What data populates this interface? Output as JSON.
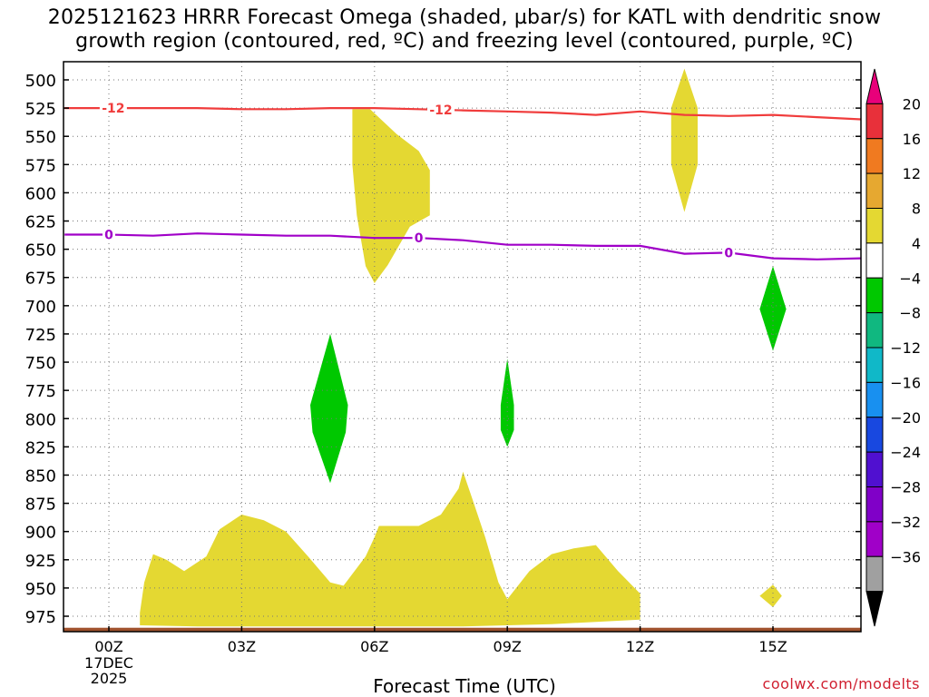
{
  "title": {
    "line1": "2025121623 HRRR Forecast Omega (shaded, µbar/s) for KATL with dendritic snow",
    "line2": "growth region (contoured, red, ºC) and freezing level (contoured, purple, ºC)"
  },
  "xlabel": "Forecast Time (UTC)",
  "credit": "coolwx.com/modelts",
  "chart_data": {
    "type": "time-height cross-section",
    "x_unit": "forecast hour",
    "x_ticks": [
      {
        "hour": 0,
        "label": "00Z",
        "sub": [
          "17DEC",
          "2025"
        ]
      },
      {
        "hour": 3,
        "label": "03Z",
        "sub": []
      },
      {
        "hour": 6,
        "label": "06Z",
        "sub": []
      },
      {
        "hour": 9,
        "label": "09Z",
        "sub": []
      },
      {
        "hour": 12,
        "label": "12Z",
        "sub": []
      },
      {
        "hour": 15,
        "label": "15Z",
        "sub": []
      }
    ],
    "xlim": [
      -1,
      17
    ],
    "y_unit": "hPa",
    "y_levels": [
      500,
      525,
      550,
      575,
      600,
      625,
      650,
      675,
      700,
      725,
      750,
      775,
      800,
      825,
      850,
      875,
      900,
      925,
      950,
      975
    ],
    "ylim": [
      490,
      985
    ],
    "colorbar": {
      "ticks": [
        20,
        16,
        12,
        8,
        4,
        -4,
        -8,
        -12,
        -16,
        -20,
        -24,
        -28,
        -32,
        -36
      ],
      "colors": [
        "#e8007a",
        "#e8303a",
        "#f07a20",
        "#e6a830",
        "#e4d832",
        "#ffffff",
        "#00c800",
        "#10b880",
        "#10b8c8",
        "#1890f0",
        "#1848e0",
        "#5010d0",
        "#8000c8",
        "#a000c8",
        "#a0a0a0",
        "#000000"
      ]
    },
    "omega_fill": [
      {
        "sign": "positive",
        "color": "#e4d832",
        "points": [
          [
            5.5,
            526
          ],
          [
            5.9,
            526
          ],
          [
            6.5,
            548
          ],
          [
            7.0,
            563
          ],
          [
            7.25,
            580
          ],
          [
            7.25,
            620
          ],
          [
            6.8,
            630
          ],
          [
            6.3,
            664
          ],
          [
            6.0,
            680
          ],
          [
            5.8,
            665
          ],
          [
            5.6,
            620
          ],
          [
            5.5,
            575
          ]
        ]
      },
      {
        "sign": "positive",
        "color": "#e4d832",
        "points": [
          [
            13.0,
            490
          ],
          [
            13.3,
            525
          ],
          [
            13.3,
            575
          ],
          [
            13.0,
            617
          ],
          [
            12.7,
            575
          ],
          [
            12.7,
            525
          ]
        ]
      },
      {
        "sign": "positive",
        "color": "#e4d832",
        "points": [
          [
            0.7,
            972
          ],
          [
            0.8,
            945
          ],
          [
            1.0,
            920
          ],
          [
            1.3,
            925
          ],
          [
            1.7,
            935
          ],
          [
            2.2,
            922
          ],
          [
            2.5,
            898
          ],
          [
            3.0,
            885
          ],
          [
            3.5,
            890
          ],
          [
            4.0,
            900
          ],
          [
            4.5,
            922
          ],
          [
            5.0,
            945
          ],
          [
            5.3,
            948
          ],
          [
            5.8,
            922
          ],
          [
            6.0,
            905
          ],
          [
            6.1,
            895
          ],
          [
            7.0,
            895
          ],
          [
            7.5,
            885
          ],
          [
            7.9,
            862
          ],
          [
            8.0,
            847
          ],
          [
            8.2,
            870
          ],
          [
            8.5,
            905
          ],
          [
            8.8,
            945
          ],
          [
            9.0,
            960
          ],
          [
            9.5,
            935
          ],
          [
            10.0,
            920
          ],
          [
            10.5,
            915
          ],
          [
            11.0,
            912
          ],
          [
            11.5,
            935
          ],
          [
            12.0,
            955
          ],
          [
            12.0,
            978
          ],
          [
            10.0,
            982
          ],
          [
            8.0,
            984
          ],
          [
            5.0,
            984
          ],
          [
            2.0,
            984
          ],
          [
            0.7,
            983
          ]
        ]
      },
      {
        "sign": "positive",
        "color": "#e4d832",
        "points": [
          [
            14.7,
            957
          ],
          [
            15.0,
            947
          ],
          [
            15.2,
            957
          ],
          [
            15.0,
            967
          ]
        ]
      },
      {
        "sign": "negative",
        "color": "#00c800",
        "points": [
          [
            5.0,
            725
          ],
          [
            5.4,
            788
          ],
          [
            5.35,
            812
          ],
          [
            5.0,
            857
          ],
          [
            4.6,
            812
          ],
          [
            4.55,
            788
          ]
        ]
      },
      {
        "sign": "negative",
        "color": "#00c800",
        "points": [
          [
            9.0,
            747
          ],
          [
            9.15,
            788
          ],
          [
            9.15,
            810
          ],
          [
            9.0,
            825
          ],
          [
            8.85,
            810
          ],
          [
            8.85,
            788
          ]
        ]
      },
      {
        "sign": "negative",
        "color": "#00c800",
        "points": [
          [
            15.0,
            665
          ],
          [
            15.3,
            703
          ],
          [
            15.0,
            740
          ],
          [
            14.7,
            703
          ]
        ]
      }
    ],
    "isotherm_minus12": {
      "label": "-12",
      "color": "#f03c3c",
      "points": [
        [
          -1,
          525
        ],
        [
          0,
          525
        ],
        [
          1,
          525
        ],
        [
          2,
          525
        ],
        [
          3,
          526
        ],
        [
          4,
          526
        ],
        [
          5,
          525
        ],
        [
          6,
          525
        ],
        [
          7,
          526
        ],
        [
          8,
          527
        ],
        [
          9,
          528
        ],
        [
          10,
          529
        ],
        [
          11,
          531
        ],
        [
          12,
          528
        ],
        [
          13,
          531
        ],
        [
          14,
          532
        ],
        [
          15,
          531
        ],
        [
          16,
          533
        ],
        [
          17,
          535
        ]
      ],
      "label_at": [
        0.1,
        7.5
      ]
    },
    "freezing_level_0C": {
      "label": "0",
      "color": "#a000c8",
      "points": [
        [
          -1,
          637
        ],
        [
          0,
          637
        ],
        [
          1,
          638
        ],
        [
          2,
          636
        ],
        [
          3,
          637
        ],
        [
          4,
          638
        ],
        [
          5,
          638
        ],
        [
          6,
          640
        ],
        [
          7,
          640
        ],
        [
          8,
          642
        ],
        [
          9,
          646
        ],
        [
          10,
          646
        ],
        [
          11,
          647
        ],
        [
          12,
          647
        ],
        [
          13,
          654
        ],
        [
          14,
          653
        ],
        [
          15,
          658
        ],
        [
          16,
          659
        ],
        [
          17,
          658
        ]
      ],
      "label_at": [
        0.0,
        7.0,
        14.0
      ]
    },
    "ground": {
      "color": "#a0522d",
      "top_hpa": 982
    }
  }
}
